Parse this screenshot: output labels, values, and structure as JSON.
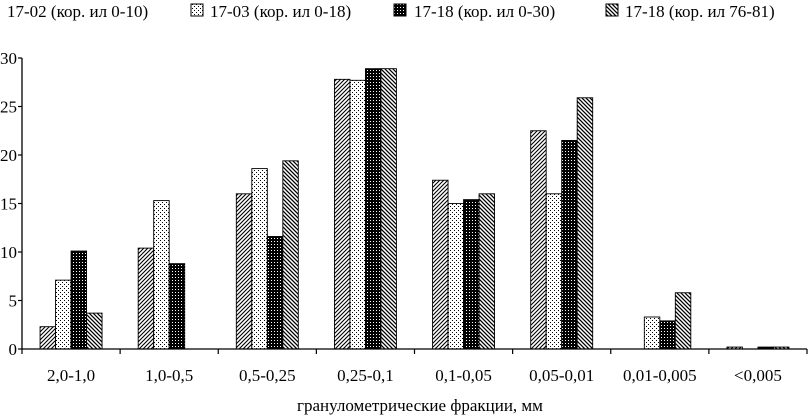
{
  "chart_data": {
    "type": "bar",
    "title": "",
    "xlabel": "гранулометрические фракции, мм",
    "ylabel": "",
    "ylim": [
      0,
      30
    ],
    "yticks": [
      0,
      5,
      10,
      15,
      20,
      25,
      30
    ],
    "legend_position": "top",
    "grid": false,
    "categories": [
      "2,0-1,0",
      "1,0-0,5",
      "0,5-0,25",
      "0,25-0,1",
      "0,1-0,05",
      "0,05-0,01",
      "0,01-0,005",
      "<0,005"
    ],
    "series": [
      {
        "name": "17-02 (кор. ил 0-10)",
        "pattern": "diag-right",
        "values": [
          2.3,
          10.4,
          16.0,
          27.8,
          17.4,
          22.5,
          null,
          0.2
        ]
      },
      {
        "name": "17-03 (кор. ил 0-18)",
        "pattern": "dots",
        "values": [
          7.1,
          15.3,
          18.6,
          27.7,
          15.0,
          16.0,
          3.3,
          null
        ]
      },
      {
        "name": "17-18 (кор. ил 0-30)",
        "pattern": "dark-grid",
        "values": [
          10.1,
          8.8,
          11.6,
          28.9,
          15.4,
          21.5,
          2.9,
          0.2
        ]
      },
      {
        "name": "17-18 (кор. ил 76-81)",
        "pattern": "diag-left",
        "values": [
          3.7,
          null,
          19.4,
          28.9,
          16.0,
          25.9,
          5.8,
          0.2
        ]
      }
    ]
  }
}
